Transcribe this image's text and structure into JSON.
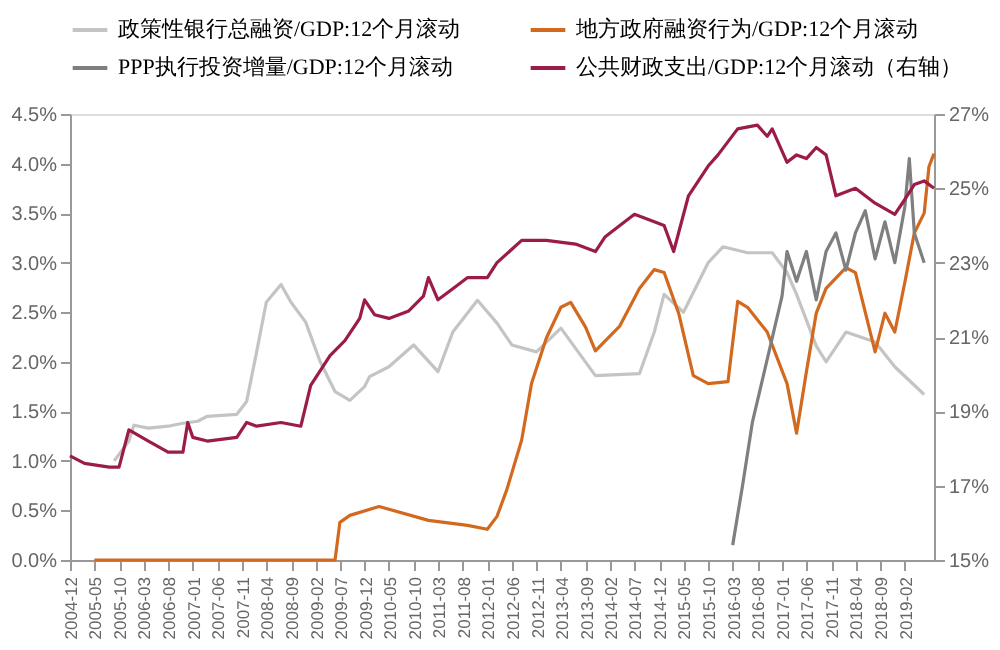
{
  "chart_data": {
    "type": "line",
    "legend": "top",
    "marker": "none",
    "line_style": "solid",
    "grid": false,
    "xlim": [
      "2004-12",
      "2019-08"
    ],
    "xticks": [
      "2004-12",
      "2005-05",
      "2005-10",
      "2006-03",
      "2006-08",
      "2007-01",
      "2007-06",
      "2007-11",
      "2008-04",
      "2008-09",
      "2009-02",
      "2009-07",
      "2009-12",
      "2010-05",
      "2010-10",
      "2011-03",
      "2011-08",
      "2012-01",
      "2012-06",
      "2012-11",
      "2013-04",
      "2013-09",
      "2014-02",
      "2014-07",
      "2014-12",
      "2015-05",
      "2015-10",
      "2016-03",
      "2016-08",
      "2017-01",
      "2017-06",
      "2017-11",
      "2018-04",
      "2018-09",
      "2019-02"
    ],
    "ylim": [
      0,
      4.5
    ],
    "yticks": [
      {
        "value": 0,
        "label": "0.0%"
      },
      {
        "value": 0.5,
        "label": "0.5%"
      },
      {
        "value": 1,
        "label": "1.0%"
      },
      {
        "value": 1.5,
        "label": "1.5%"
      },
      {
        "value": 2,
        "label": "2.0%"
      },
      {
        "value": 2.5,
        "label": "2.5%"
      },
      {
        "value": 3,
        "label": "3.0%"
      },
      {
        "value": 3.5,
        "label": "3.5%"
      },
      {
        "value": 4,
        "label": "4.0%"
      },
      {
        "value": 4.5,
        "label": "4.5%"
      }
    ],
    "y2lim": [
      15,
      27
    ],
    "y2ticks": [
      {
        "value": 15,
        "label": "15%"
      },
      {
        "value": 17,
        "label": "17%"
      },
      {
        "value": 19,
        "label": "19%"
      },
      {
        "value": 21,
        "label": "21%"
      },
      {
        "value": 23,
        "label": "23%"
      },
      {
        "value": 25,
        "label": "25%"
      },
      {
        "value": 27,
        "label": "27%"
      }
    ],
    "series": [
      {
        "name": "政策性银行总融资/GDP:12个月滚动",
        "color": "#c4c4c4",
        "x": [
          "2005-09",
          "2005-12",
          "2006-01",
          "2006-04",
          "2006-08",
          "2006-11",
          "2007-02",
          "2007-04",
          "2007-10",
          "2007-12",
          "2008-02",
          "2008-04",
          "2008-07",
          "2008-09",
          "2008-12",
          "2009-03",
          "2009-06",
          "2009-09",
          "2009-12",
          "2010-01",
          "2010-05",
          "2010-10",
          "2011-03",
          "2011-06",
          "2011-11",
          "2012-03",
          "2012-06",
          "2012-11",
          "2013-04",
          "2013-11",
          "2014-08",
          "2014-11",
          "2015-01",
          "2015-05",
          "2015-10",
          "2016-01",
          "2016-06",
          "2016-11",
          "2017-02",
          "2017-04",
          "2017-08",
          "2017-10",
          "2018-02",
          "2018-08",
          "2018-12",
          "2019-06"
        ],
        "values": [
          1.0,
          1.2,
          1.36,
          1.33,
          1.35,
          1.38,
          1.4,
          1.45,
          1.47,
          1.6,
          2.1,
          2.6,
          2.78,
          2.6,
          2.4,
          2.0,
          1.7,
          1.61,
          1.75,
          1.85,
          1.95,
          2.17,
          1.9,
          2.3,
          2.62,
          2.39,
          2.17,
          2.1,
          2.34,
          1.86,
          1.88,
          2.3,
          2.68,
          2.5,
          3.0,
          3.16,
          3.1,
          3.1,
          2.9,
          2.68,
          2.16,
          2.0,
          2.3,
          2.2,
          1.95,
          1.67
        ]
      },
      {
        "name": "地方政府融资行为/GDP:12个月滚动",
        "color": "#d2691e",
        "x": [
          "2005-05",
          "2009-06",
          "2009-07",
          "2009-09",
          "2010-03",
          "2011-01",
          "2011-09",
          "2012-01",
          "2012-03",
          "2012-05",
          "2012-08",
          "2012-10",
          "2013-01",
          "2013-04",
          "2013-06",
          "2013-09",
          "2013-11",
          "2014-04",
          "2014-08",
          "2014-11",
          "2015-01",
          "2015-04",
          "2015-07",
          "2015-10",
          "2016-02",
          "2016-04",
          "2016-06",
          "2016-10",
          "2017-02",
          "2017-04",
          "2017-06",
          "2017-08",
          "2017-10",
          "2018-02",
          "2018-04",
          "2018-08",
          "2018-10",
          "2018-12",
          "2019-02",
          "2019-04",
          "2019-06",
          "2019-07",
          "2019-08"
        ],
        "values": [
          0,
          0,
          0.38,
          0.45,
          0.54,
          0.4,
          0.35,
          0.31,
          0.44,
          0.71,
          1.21,
          1.78,
          2.24,
          2.55,
          2.6,
          2.35,
          2.11,
          2.36,
          2.74,
          2.93,
          2.9,
          2.49,
          1.86,
          1.78,
          1.8,
          2.61,
          2.55,
          2.3,
          1.78,
          1.28,
          1.9,
          2.49,
          2.74,
          2.95,
          2.9,
          2.1,
          2.49,
          2.3,
          2.8,
          3.3,
          3.5,
          3.97,
          4.1
        ]
      },
      {
        "name": "PPP执行投资增量/GDP:12个月滚动",
        "color": "#7f7f7f",
        "axis": "y2",
        "x": [
          "2016-03",
          "2016-05",
          "2016-07",
          "2016-10",
          "2017-01",
          "2017-02",
          "2017-04",
          "2017-06",
          "2017-08",
          "2017-10",
          "2017-12",
          "2018-02",
          "2018-04",
          "2018-06",
          "2018-08",
          "2018-10",
          "2018-12",
          "2019-02",
          "2019-03",
          "2019-04",
          "2019-06"
        ],
        "values": [
          15.4,
          17.0,
          18.7,
          20.4,
          22.1,
          23.3,
          22.5,
          23.3,
          22.0,
          23.3,
          23.8,
          22.8,
          23.8,
          24.4,
          23.1,
          24.1,
          23.0,
          24.5,
          25.8,
          23.8,
          23.0
        ]
      },
      {
        "name": "公共财政支出/GDP:12个月滚动（右轴）",
        "color": "#9b1b4b",
        "axis": "y2",
        "x": [
          "2004-12",
          "2005-03",
          "2005-08",
          "2005-10",
          "2005-12",
          "2006-04",
          "2006-08",
          "2006-11",
          "2006-12",
          "2007-01",
          "2007-04",
          "2007-10",
          "2007-12",
          "2008-02",
          "2008-07",
          "2008-11",
          "2009-01",
          "2009-05",
          "2009-08",
          "2009-11",
          "2009-12",
          "2010-02",
          "2010-05",
          "2010-09",
          "2010-12",
          "2011-01",
          "2011-03",
          "2011-06",
          "2011-09",
          "2012-01",
          "2012-03",
          "2012-08",
          "2013-01",
          "2013-07",
          "2013-11",
          "2014-01",
          "2014-07",
          "2014-09",
          "2015-01",
          "2015-03",
          "2015-06",
          "2015-10",
          "2015-12",
          "2016-04",
          "2016-08",
          "2016-10",
          "2016-11",
          "2017-02",
          "2017-04",
          "2017-06",
          "2017-08",
          "2017-10",
          "2017-12",
          "2018-04",
          "2018-08",
          "2018-12",
          "2019-02",
          "2019-04",
          "2019-06",
          "2019-08"
        ],
        "values": [
          17.8,
          17.6,
          17.5,
          17.5,
          18.5,
          18.2,
          17.9,
          17.9,
          18.7,
          18.3,
          18.2,
          18.3,
          18.7,
          18.6,
          18.7,
          18.6,
          19.7,
          20.5,
          20.9,
          21.5,
          22.0,
          21.6,
          21.5,
          21.7,
          22.1,
          22.6,
          22.0,
          22.3,
          22.6,
          22.6,
          23.0,
          23.6,
          23.6,
          23.5,
          23.3,
          23.7,
          24.3,
          24.2,
          24.0,
          23.3,
          24.8,
          25.6,
          25.9,
          26.6,
          26.7,
          26.4,
          26.6,
          25.7,
          25.9,
          25.8,
          26.1,
          25.9,
          24.8,
          25.0,
          24.6,
          24.3,
          24.7,
          25.1,
          25.2,
          25.0
        ]
      }
    ]
  }
}
